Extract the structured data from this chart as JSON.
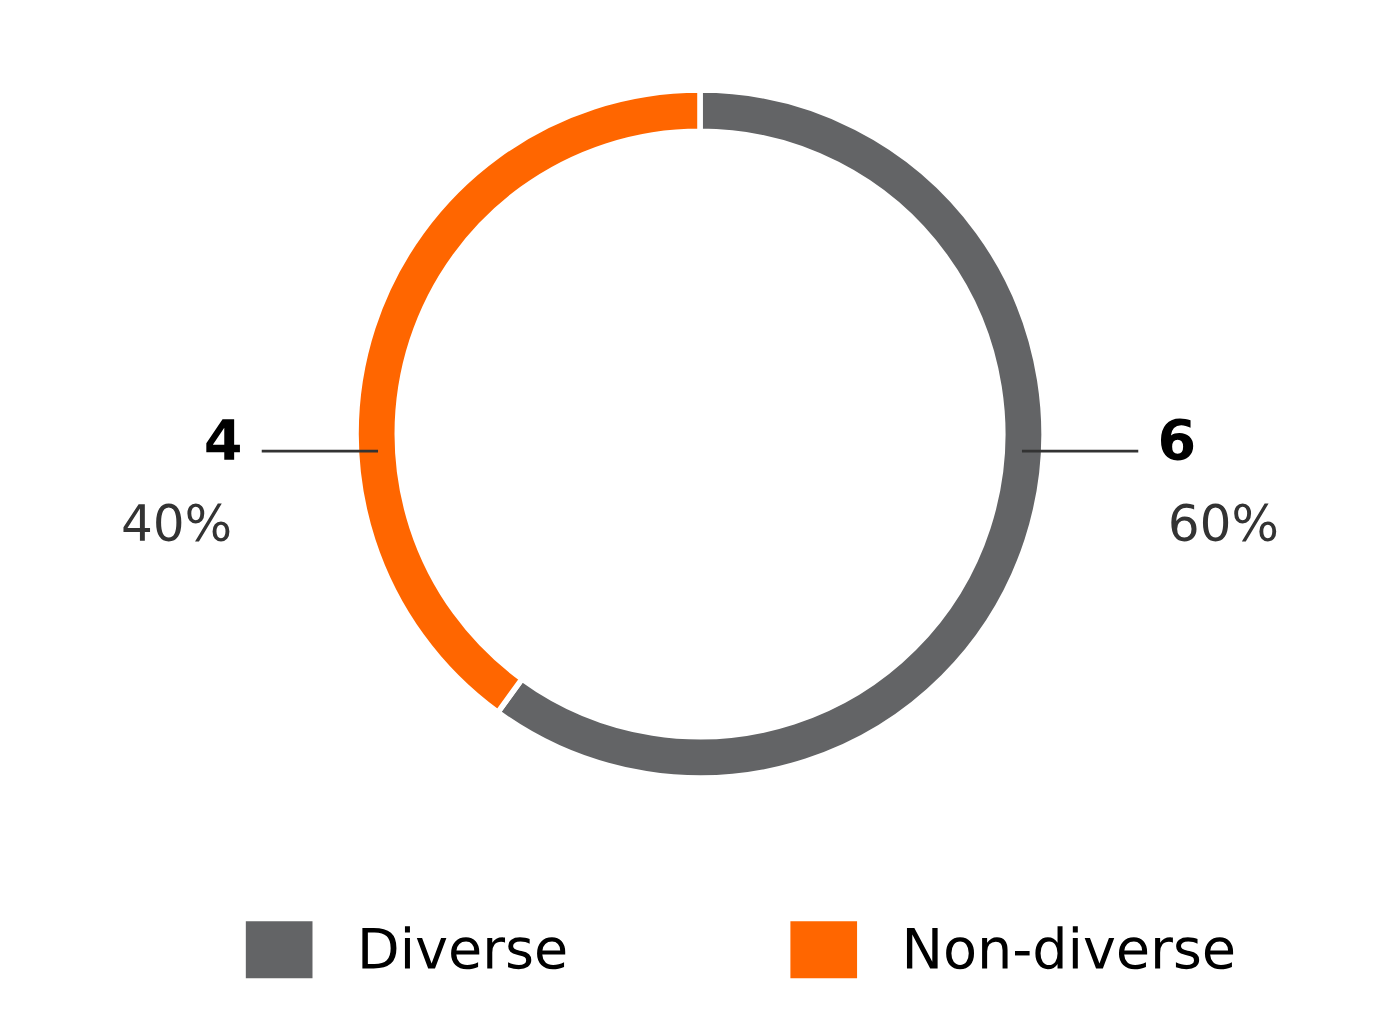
{
  "chart_data": {
    "type": "donut",
    "categories": [
      "Diverse",
      "Non-diverse"
    ],
    "values": [
      6,
      4
    ],
    "colors": [
      "#636466",
      "#ff6600"
    ],
    "value_labels": [
      "6\n60%",
      "4\n40%"
    ],
    "legend": "bottom"
  }
}
